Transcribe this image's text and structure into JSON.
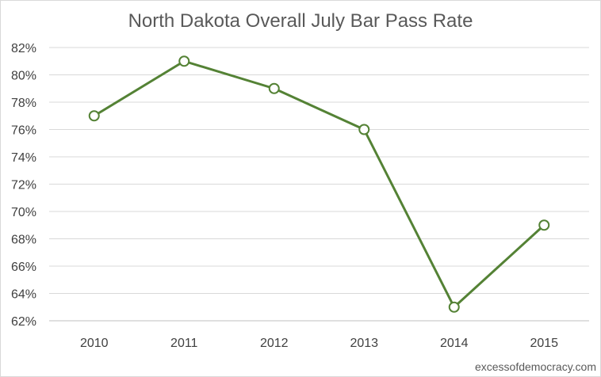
{
  "chart_data": {
    "type": "line",
    "title": "North Dakota Overall July Bar Pass Rate",
    "xlabel": "",
    "ylabel": "",
    "categories": [
      "2010",
      "2011",
      "2012",
      "2013",
      "2014",
      "2015"
    ],
    "series": [
      {
        "values": [
          77,
          81,
          79,
          76,
          63,
          69
        ],
        "color": "#548235"
      }
    ],
    "ylim": [
      62,
      82
    ],
    "y_tick_step": 2,
    "y_tick_suffix": "%",
    "grid": true,
    "legend": "none",
    "marker": "open-circle"
  },
  "watermark": "excessofdemocracy.com"
}
